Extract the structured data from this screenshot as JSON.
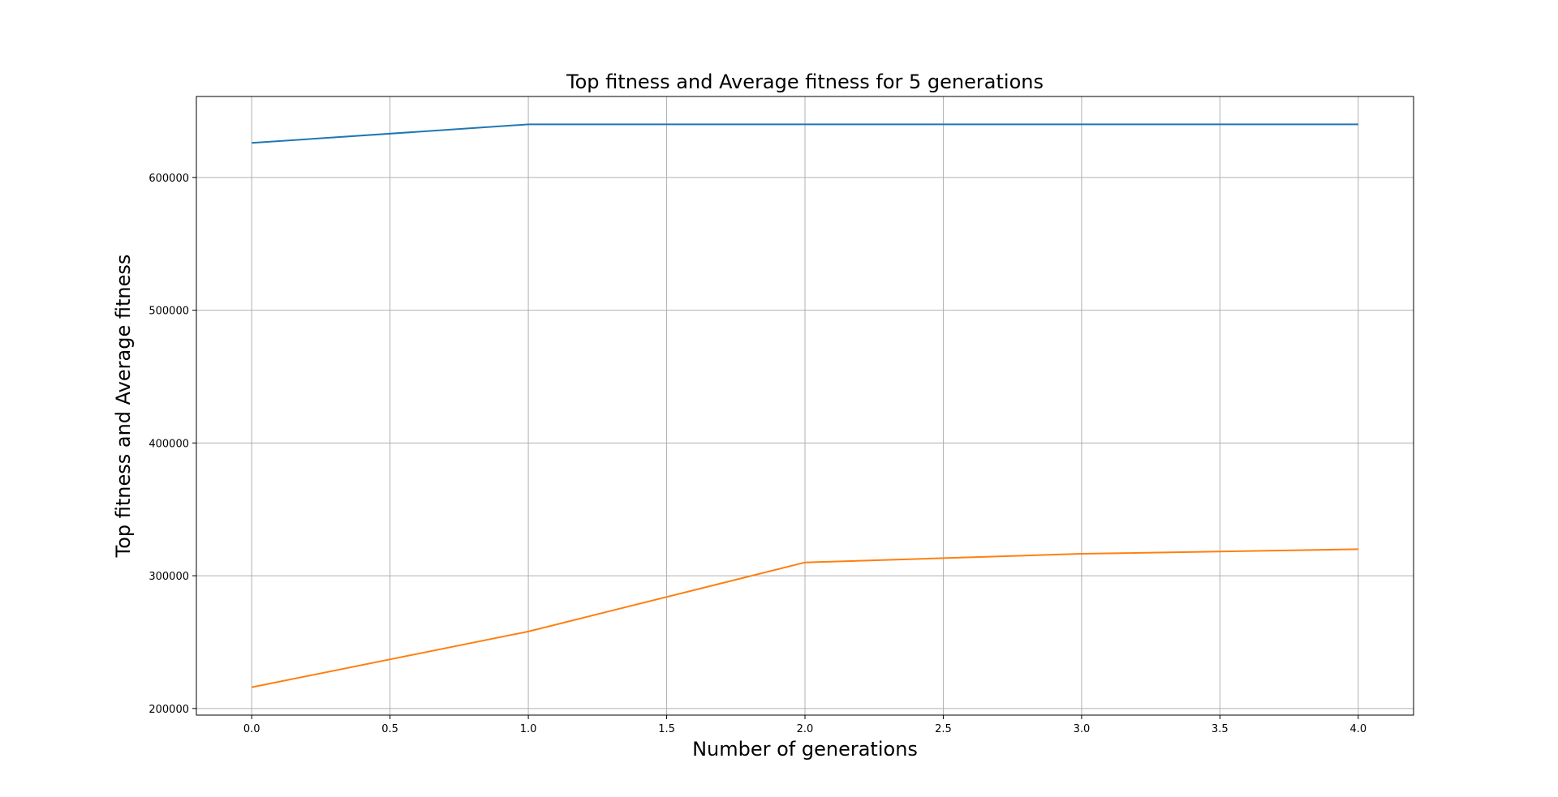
{
  "chart_data": {
    "type": "line",
    "title": "Top fitness and Average fitness for 5 generations",
    "xlabel": "Number of generations",
    "ylabel": "Top fitness and Average fitness",
    "xlim": [
      -0.2,
      4.2
    ],
    "ylim": [
      195000,
      661000
    ],
    "x_ticks": [
      0.0,
      0.5,
      1.0,
      1.5,
      2.0,
      2.5,
      3.0,
      3.5,
      4.0
    ],
    "x_tick_labels": [
      "0.0",
      "0.5",
      "1.0",
      "1.5",
      "2.0",
      "2.5",
      "3.0",
      "3.5",
      "4.0"
    ],
    "y_ticks": [
      200000,
      300000,
      400000,
      500000,
      600000
    ],
    "y_tick_labels": [
      "200000",
      "300000",
      "400000",
      "500000",
      "600000"
    ],
    "grid": true,
    "x": [
      0,
      1,
      2,
      3,
      4
    ],
    "series": [
      {
        "color": "#1f77b4",
        "values": [
          626000,
          640000,
          640000,
          640000,
          640000
        ]
      },
      {
        "color": "#ff7f0e",
        "values": [
          216000,
          258000,
          310000,
          316500,
          320000
        ]
      }
    ]
  }
}
